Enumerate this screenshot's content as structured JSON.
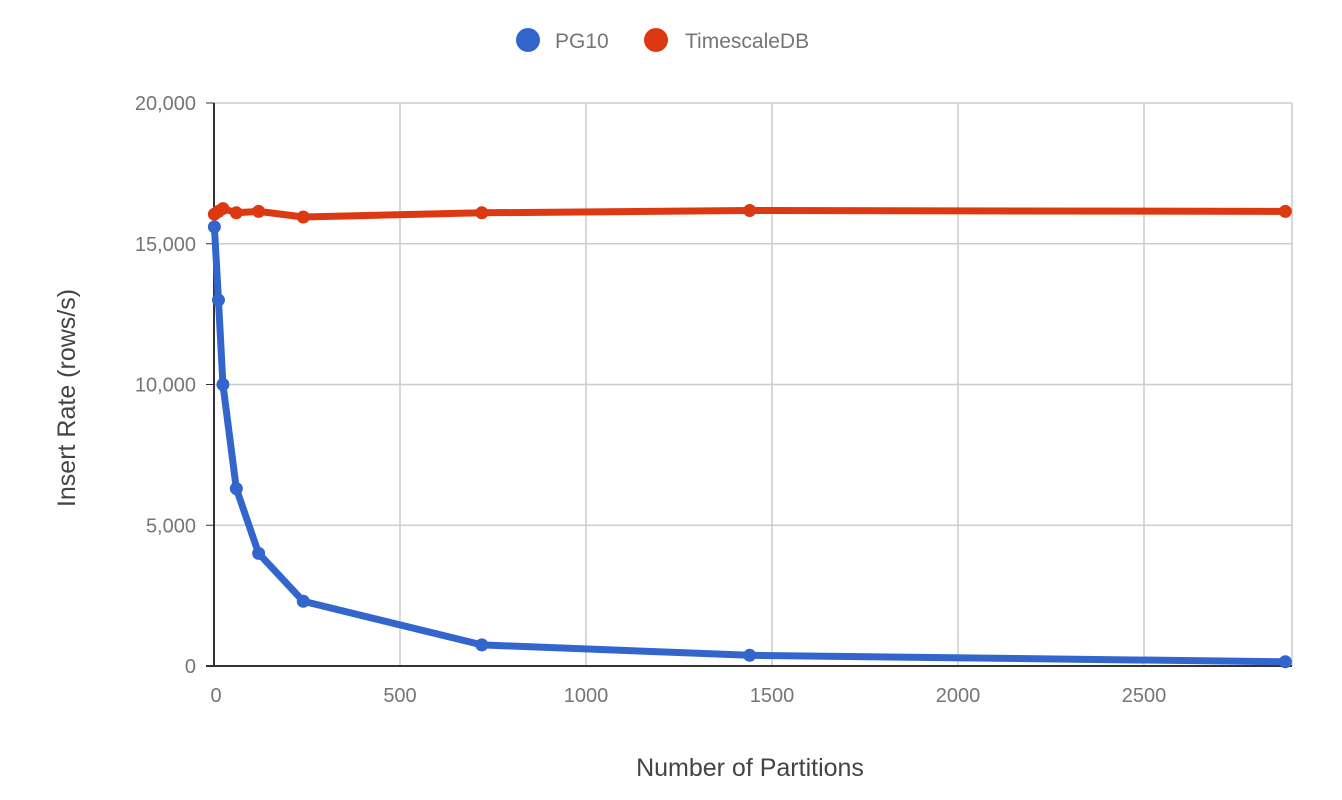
{
  "chart_data": {
    "type": "line",
    "title": "",
    "xlabel": "Number of Partitions",
    "ylabel": "Insert Rate (rows/s)",
    "xlim": [
      0,
      2900
    ],
    "ylim": [
      0,
      20000
    ],
    "x_ticks": [
      0,
      500,
      1000,
      1500,
      2000,
      2500
    ],
    "x_tick_labels": [
      "0",
      "500",
      "1000",
      "1500",
      "2000",
      "2500"
    ],
    "y_ticks": [
      0,
      5000,
      10000,
      15000,
      20000
    ],
    "y_tick_labels": [
      "0",
      "5,000",
      "10,000",
      "15,000",
      "20,000"
    ],
    "grid": true,
    "legend_position": "top",
    "series": [
      {
        "name": "PG10",
        "color": "#3366cc",
        "x": [
          1,
          12,
          24,
          60,
          120,
          240,
          720,
          1440,
          2880
        ],
        "values": [
          15600,
          13000,
          10000,
          6300,
          4000,
          2300,
          750,
          380,
          150
        ]
      },
      {
        "name": "TimescaleDB",
        "color": "#dc3912",
        "x": [
          1,
          12,
          24,
          60,
          120,
          240,
          720,
          1440,
          2880
        ],
        "values": [
          16050,
          16150,
          16250,
          16100,
          16150,
          15950,
          16100,
          16180,
          16150
        ]
      }
    ]
  },
  "legend": {
    "items": [
      {
        "label": "PG10",
        "color": "#3366cc"
      },
      {
        "label": "TimescaleDB",
        "color": "#dc3912"
      }
    ]
  }
}
